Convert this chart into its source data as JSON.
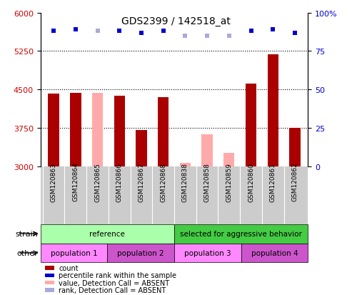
{
  "title": "GDS2399 / 142518_at",
  "samples": [
    "GSM120863",
    "GSM120864",
    "GSM120865",
    "GSM120866",
    "GSM120867",
    "GSM120868",
    "GSM120838",
    "GSM120858",
    "GSM120859",
    "GSM120860",
    "GSM120861",
    "GSM120862"
  ],
  "bar_values": [
    4420,
    4430,
    null,
    4380,
    3710,
    4350,
    null,
    null,
    null,
    4620,
    5180,
    3750
  ],
  "bar_absent_values": [
    null,
    null,
    4430,
    null,
    null,
    null,
    3070,
    3620,
    3260,
    null,
    null,
    null
  ],
  "dot_absent": [
    false,
    false,
    true,
    false,
    false,
    false,
    true,
    true,
    true,
    false,
    false,
    false
  ],
  "ylim_left": [
    3000,
    6000
  ],
  "ylim_right": [
    0,
    100
  ],
  "yticks_left": [
    3000,
    3750,
    4500,
    5250,
    6000
  ],
  "yticks_right": [
    0,
    25,
    50,
    75,
    100
  ],
  "ytick_gridlines": [
    3750,
    4500,
    5250
  ],
  "bar_color_present": "#aa0000",
  "bar_color_absent": "#ffaaaa",
  "dot_color_present": "#0000cc",
  "dot_color_absent": "#aaaadd",
  "dot_right_values": [
    88,
    89,
    88,
    88,
    87,
    88,
    85,
    85,
    85,
    88,
    89,
    87
  ],
  "strain_labels": [
    {
      "text": "reference",
      "start": 0,
      "end": 6,
      "color": "#aaffaa"
    },
    {
      "text": "selected for aggressive behavior",
      "start": 6,
      "end": 12,
      "color": "#44cc44"
    }
  ],
  "other_labels": [
    {
      "text": "population 1",
      "start": 0,
      "end": 3,
      "color": "#ff88ff"
    },
    {
      "text": "population 2",
      "start": 3,
      "end": 6,
      "color": "#cc55cc"
    },
    {
      "text": "population 3",
      "start": 6,
      "end": 9,
      "color": "#ff88ff"
    },
    {
      "text": "population 4",
      "start": 9,
      "end": 12,
      "color": "#cc55cc"
    }
  ],
  "legend_items": [
    {
      "label": "count",
      "color": "#aa0000"
    },
    {
      "label": "percentile rank within the sample",
      "color": "#0000cc"
    },
    {
      "label": "value, Detection Call = ABSENT",
      "color": "#ffaaaa"
    },
    {
      "label": "rank, Detection Call = ABSENT",
      "color": "#aaaadd"
    }
  ],
  "tick_label_color_left": "#cc0000",
  "tick_label_color_right": "#0000cc",
  "xtick_bg_color": "#cccccc"
}
